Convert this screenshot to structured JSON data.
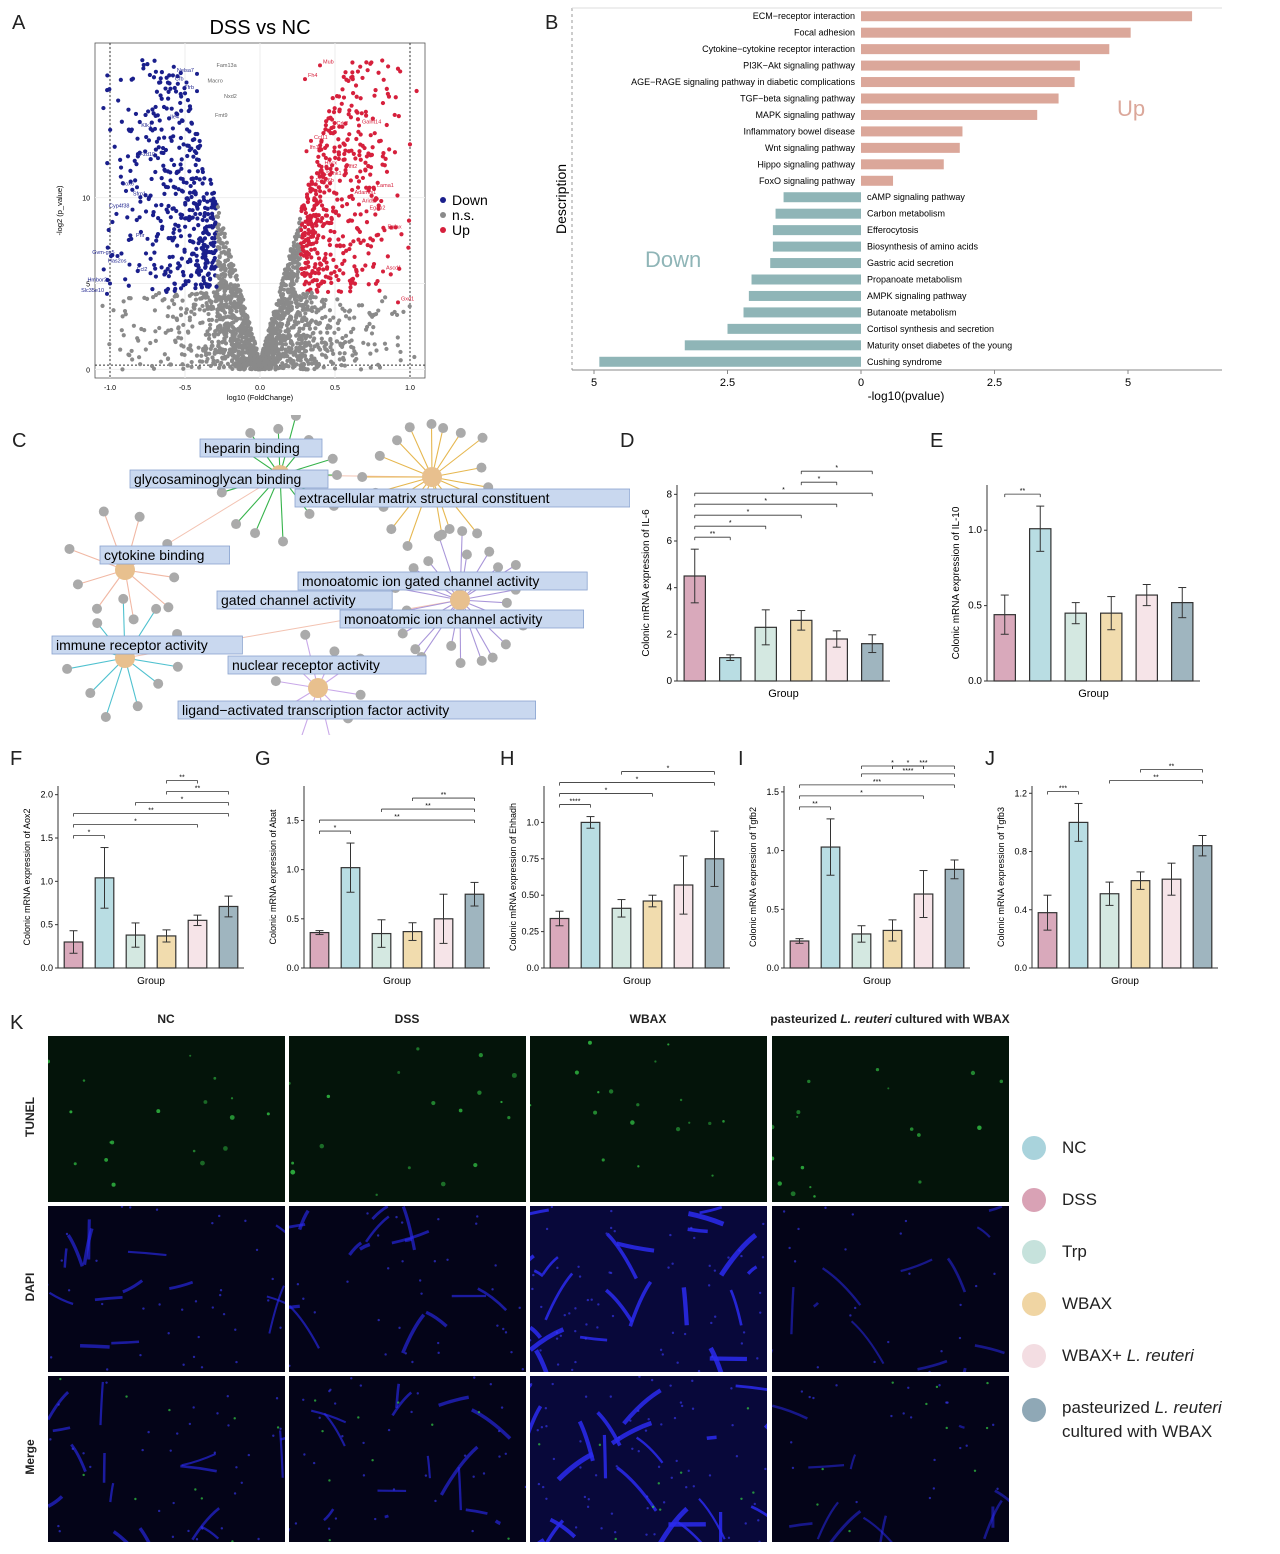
{
  "panel_labels": [
    "A",
    "B",
    "C",
    "D",
    "E",
    "F",
    "G",
    "H",
    "I",
    "J",
    "K"
  ],
  "colors": {
    "down": "#1a1f8c",
    "ns": "#8a8a8a",
    "up": "#d6203c",
    "kegg_up": "#dba79a",
    "kegg_down": "#8fb5b7",
    "go_hub": "#e8c08e",
    "go_box": "#c9d8ef",
    "go_box_border": "#8aa3cf"
  },
  "chart_data": [
    {
      "id": "A",
      "type": "scatter",
      "title": "DSS vs NC",
      "xlabel": "log10 (FoldChange)",
      "ylabel": "-log2 (p_value)",
      "xlim": [
        -1.1,
        1.1
      ],
      "ylim": [
        -0.5,
        19
      ],
      "x_ticks": [
        "-1.0",
        "-0.5",
        "0.0",
        "0.5",
        "1.0"
      ],
      "y_ticks": [
        "0",
        "5",
        "10"
      ],
      "legend": [
        {
          "key": "down",
          "label": "Down"
        },
        {
          "key": "ns",
          "label": "n.s."
        },
        {
          "key": "up",
          "label": "Up"
        }
      ],
      "down_labels": [
        {
          "name": "Nelsa7",
          "x": -0.42,
          "y": 17.2
        },
        {
          "name": "Cfb",
          "x": -0.49,
          "y": 16.7
        },
        {
          "name": "Tfrb",
          "x": -0.42,
          "y": 16.2
        },
        {
          "name": "Ile4",
          "x": -0.52,
          "y": 14.5
        },
        {
          "name": "Klk1",
          "x": -0.7,
          "y": 14.0
        },
        {
          "name": "Fzd10",
          "x": -0.68,
          "y": 12.3
        },
        {
          "name": "Sox6",
          "x": -0.82,
          "y": 10.6
        },
        {
          "name": "Sfrp1",
          "x": -0.74,
          "y": 10.0
        },
        {
          "name": "Cyp4f38",
          "x": -0.85,
          "y": 9.3
        },
        {
          "name": "Prir",
          "x": -0.75,
          "y": 7.6
        },
        {
          "name": "Gvm-gs5",
          "x": -0.95,
          "y": 6.6
        },
        {
          "name": "Has2os",
          "x": -0.87,
          "y": 6.1
        },
        {
          "name": "Ecl2",
          "x": -0.73,
          "y": 5.6
        },
        {
          "name": "Hmbor2",
          "x": -1.0,
          "y": 5.0
        },
        {
          "name": "Slc35e10",
          "x": -1.02,
          "y": 4.4
        }
      ],
      "ns_labels": [
        {
          "name": "Fam13a",
          "x": -0.29,
          "y": 17.6
        },
        {
          "name": "Macro",
          "x": -0.35,
          "y": 16.7
        },
        {
          "name": "Nxd2",
          "x": -0.24,
          "y": 15.8
        },
        {
          "name": "Fmt9",
          "x": -0.3,
          "y": 14.7
        }
      ],
      "up_labels": [
        {
          "name": "Fh4",
          "x": 0.3,
          "y": 16.9
        },
        {
          "name": "Mub",
          "x": 0.4,
          "y": 17.7
        },
        {
          "name": "Crk2",
          "x": 0.49,
          "y": 14.1
        },
        {
          "name": "Galnt14",
          "x": 0.66,
          "y": 14.2
        },
        {
          "name": "Ccl11",
          "x": 0.34,
          "y": 13.3
        },
        {
          "name": "Ifn1",
          "x": 0.31,
          "y": 12.7
        },
        {
          "name": "Hhcx",
          "x": 0.41,
          "y": 11.8
        },
        {
          "name": "Ifit2",
          "x": 0.57,
          "y": 11.6
        },
        {
          "name": "Sphk1",
          "x": 0.42,
          "y": 11.2
        },
        {
          "name": "Exoc6b",
          "x": 0.35,
          "y": 10.8
        },
        {
          "name": "Lama1",
          "x": 0.76,
          "y": 10.5
        },
        {
          "name": "Adamts1",
          "x": 0.61,
          "y": 10.1
        },
        {
          "name": "Arid5",
          "x": 0.66,
          "y": 9.6
        },
        {
          "name": "Egap2",
          "x": 0.71,
          "y": 9.2
        },
        {
          "name": "Egfax",
          "x": 0.83,
          "y": 8.1
        },
        {
          "name": "Ascd1",
          "x": 0.82,
          "y": 5.7
        },
        {
          "name": "Gxd1",
          "x": 0.92,
          "y": 3.9
        }
      ]
    },
    {
      "id": "B",
      "type": "bar",
      "orientation": "horizontal",
      "xlabel": "-log10(pvalue)",
      "ylabel": "Description",
      "xlim": [
        -5.2,
        6.5
      ],
      "x_ticks": [
        "5",
        "2.5",
        "0",
        "2.5",
        "5"
      ],
      "up_annotation": "Up",
      "down_annotation": "Down",
      "up": [
        {
          "name": "ECM−receptor interaction",
          "value": 6.2
        },
        {
          "name": "Focal adhesion",
          "value": 5.05
        },
        {
          "name": "Cytokine−cytokine receptor interaction",
          "value": 4.65
        },
        {
          "name": "PI3K−Akt signaling pathway",
          "value": 4.1
        },
        {
          "name": "AGE−RAGE signaling pathway in diabetic complications",
          "value": 4.0
        },
        {
          "name": "TGF−beta signaling pathway",
          "value": 3.7
        },
        {
          "name": "MAPK signaling pathway",
          "value": 3.3
        },
        {
          "name": "Inflammatory bowel disease",
          "value": 1.9
        },
        {
          "name": "Wnt signaling pathway",
          "value": 1.85
        },
        {
          "name": "Hippo signaling pathway",
          "value": 1.55
        },
        {
          "name": "FoxO signaling pathway",
          "value": 0.6
        }
      ],
      "down": [
        {
          "name": "cAMP signaling pathway",
          "value": 1.45
        },
        {
          "name": "Carbon metabolism",
          "value": 1.6
        },
        {
          "name": "Efferocytosis",
          "value": 1.65
        },
        {
          "name": "Biosynthesis of amino acids",
          "value": 1.65
        },
        {
          "name": "Gastric acid secretion",
          "value": 1.7
        },
        {
          "name": "Propanoate metabolism",
          "value": 2.05
        },
        {
          "name": "AMPK signaling pathway",
          "value": 2.1
        },
        {
          "name": "Butanoate metabolism",
          "value": 2.2
        },
        {
          "name": "Cortisol synthesis and secretion",
          "value": 2.5
        },
        {
          "name": "Maturity onset diabetes of the young",
          "value": 3.3
        },
        {
          "name": "Cushing syndrome",
          "value": 4.9
        }
      ]
    },
    {
      "id": "D",
      "type": "bar",
      "ylabel": "Colonic mRNA expression of IL-6",
      "xlabel": "Group",
      "ylim": [
        0,
        8.4
      ],
      "y_ticks": [
        0,
        2,
        4,
        6,
        8
      ],
      "values": [
        4.5,
        1.0,
        2.3,
        2.6,
        1.8,
        1.6
      ],
      "errors": [
        1.15,
        0.12,
        0.75,
        0.42,
        0.35,
        0.38
      ],
      "sig": [
        [
          "**",
          0,
          1
        ],
        [
          "*",
          0,
          2
        ],
        [
          "*",
          0,
          3
        ],
        [
          "*",
          0,
          4
        ],
        [
          "*",
          0,
          5
        ],
        [
          "*",
          3,
          4
        ],
        [
          "*",
          3,
          5
        ]
      ]
    },
    {
      "id": "E",
      "type": "bar",
      "ylabel": "Colonic mRNA expression of IL-10",
      "xlabel": "Group",
      "ylim": [
        0,
        1.3
      ],
      "y_ticks": [
        0,
        0.5,
        1
      ],
      "y_tick_labels": [
        "0.0",
        "0.5",
        "1.0"
      ],
      "values": [
        0.44,
        1.01,
        0.45,
        0.45,
        0.57,
        0.52
      ],
      "errors": [
        0.13,
        0.15,
        0.07,
        0.11,
        0.07,
        0.1
      ],
      "sig": [
        [
          "**",
          0,
          1
        ]
      ]
    },
    {
      "id": "F",
      "type": "bar",
      "ylabel": "Colonic mRNA expression of Aox2",
      "xlabel": "Group",
      "ylim": [
        0,
        2.1
      ],
      "y_ticks": [
        0,
        0.5,
        1,
        1.5,
        2
      ],
      "y_tick_labels": [
        "0.0",
        "0.5",
        "1.0",
        "1.5",
        "2.0"
      ],
      "values": [
        0.3,
        1.04,
        0.38,
        0.37,
        0.55,
        0.71
      ],
      "errors": [
        0.13,
        0.35,
        0.14,
        0.07,
        0.06,
        0.12
      ],
      "sig": [
        [
          "*",
          0,
          1
        ],
        [
          "*",
          0,
          4
        ],
        [
          "**",
          0,
          5
        ],
        [
          "*",
          2,
          5
        ],
        [
          "**",
          3,
          5
        ],
        [
          "**",
          3,
          4
        ]
      ]
    },
    {
      "id": "G",
      "type": "bar",
      "ylabel": "Colonic mRNA expression of Abat",
      "xlabel": "Group",
      "ylim": [
        0,
        1.85
      ],
      "y_ticks": [
        0,
        0.5,
        1,
        1.5
      ],
      "y_tick_labels": [
        "0.0",
        "0.5",
        "1.0",
        "1.5"
      ],
      "values": [
        0.36,
        1.02,
        0.35,
        0.37,
        0.5,
        0.75
      ],
      "errors": [
        0.02,
        0.25,
        0.14,
        0.09,
        0.25,
        0.12
      ],
      "sig": [
        [
          "*",
          0,
          1
        ],
        [
          "**",
          0,
          5
        ],
        [
          "**",
          2,
          5
        ],
        [
          "**",
          3,
          5
        ]
      ]
    },
    {
      "id": "H",
      "type": "bar",
      "ylabel": "Colonic mRNA expression of Ehhadh",
      "xlabel": "Group",
      "ylim": [
        0,
        1.25
      ],
      "y_ticks": [
        0,
        0.25,
        0.5,
        0.75,
        1
      ],
      "y_tick_labels": [
        "0.0",
        "0.25",
        "0.50",
        "0.75",
        "1.0"
      ],
      "values": [
        0.34,
        1.0,
        0.41,
        0.46,
        0.57,
        0.75
      ],
      "errors": [
        0.05,
        0.04,
        0.06,
        0.04,
        0.2,
        0.19
      ],
      "sig": [
        [
          "****",
          0,
          1
        ],
        [
          "*",
          0,
          3
        ],
        [
          "*",
          0,
          5
        ],
        [
          "*",
          2,
          5
        ]
      ]
    },
    {
      "id": "I",
      "type": "bar",
      "ylabel": "Colonic mRNA expression of Tgfb2",
      "xlabel": "Group",
      "ylim": [
        0,
        1.55
      ],
      "y_ticks": [
        0,
        0.5,
        1,
        1.5
      ],
      "y_tick_labels": [
        "0.0",
        "0.5",
        "1.0",
        "1.5"
      ],
      "values": [
        0.23,
        1.03,
        0.29,
        0.32,
        0.63,
        0.84
      ],
      "errors": [
        0.02,
        0.24,
        0.07,
        0.09,
        0.2,
        0.08
      ],
      "sig": [
        [
          "**",
          0,
          1
        ],
        [
          "*",
          0,
          4
        ],
        [
          "***",
          0,
          5
        ],
        [
          "****",
          2,
          5
        ],
        [
          "*",
          2,
          4
        ],
        [
          "***",
          3,
          5
        ],
        [
          "*",
          3,
          4
        ]
      ]
    },
    {
      "id": "J",
      "type": "bar",
      "ylabel": "Colonic mRNA expression of Tgfb3",
      "xlabel": "Group",
      "ylim": [
        0,
        1.25
      ],
      "y_ticks": [
        0,
        0.4,
        0.8,
        1.2
      ],
      "y_tick_labels": [
        "0.0",
        "0.4",
        "0.8",
        "1.2"
      ],
      "values": [
        0.38,
        1.0,
        0.51,
        0.6,
        0.61,
        0.84
      ],
      "errors": [
        0.12,
        0.13,
        0.08,
        0.06,
        0.11,
        0.07
      ],
      "sig": [
        [
          "***",
          0,
          1
        ],
        [
          "**",
          2,
          5
        ],
        [
          "**",
          3,
          5
        ]
      ]
    }
  ],
  "network": {
    "terms": [
      {
        "label": "heparin binding",
        "hub": 0
      },
      {
        "label": "glycosaminoglycan binding",
        "hub": 0
      },
      {
        "label": "extracellular matrix structural constituent",
        "hub": 1
      },
      {
        "label": "cytokine binding",
        "hub": 2
      },
      {
        "label": "monoatomic ion gated channel activity",
        "hub": 3
      },
      {
        "label": "gated channel activity",
        "hub": 3
      },
      {
        "label": "monoatomic ion channel activity",
        "hub": 3
      },
      {
        "label": "immune receptor activity",
        "hub": 4
      },
      {
        "label": "nuclear receptor activity",
        "hub": 5
      },
      {
        "label": "ligand−activated transcription factor activity",
        "hub": 5
      }
    ]
  },
  "groups": [
    "NC",
    "DSS",
    "Trp",
    "WBAX",
    "WBAX+ L. reuteri",
    "pasteurized L. reuteri cultured with WBAX"
  ],
  "bar_fill_colors": [
    "#d9a9bb",
    "#b9dde3",
    "#d4e8e1",
    "#f1dcae",
    "#f6e4e8",
    "#9fb5bf"
  ],
  "legend": [
    {
      "text": "NC",
      "color": "#a9d3dc"
    },
    {
      "text": "DSS",
      "color": "#d9a2b5"
    },
    {
      "text": "Trp",
      "color": "#c6e2dc"
    },
    {
      "text": "WBAX",
      "color": "#f0d5a3"
    },
    {
      "text": "WBAX+ ",
      "italic": "L. reuteri",
      "color": "#f3dde2"
    },
    {
      "text": "pasteurized ",
      "italic": "L. reuteri",
      "text2": "cultured with WBAX",
      "color": "#8fa8b6"
    }
  ],
  "panel_k": {
    "columns": [
      {
        "text": "NC"
      },
      {
        "text": "DSS"
      },
      {
        "text": "WBAX"
      },
      {
        "pre": "pasteurized ",
        "italic": "L. reuteri",
        "post": " cultured with WBAX"
      }
    ],
    "rows": [
      "TUNEL",
      "DAPI",
      "Merge"
    ]
  }
}
